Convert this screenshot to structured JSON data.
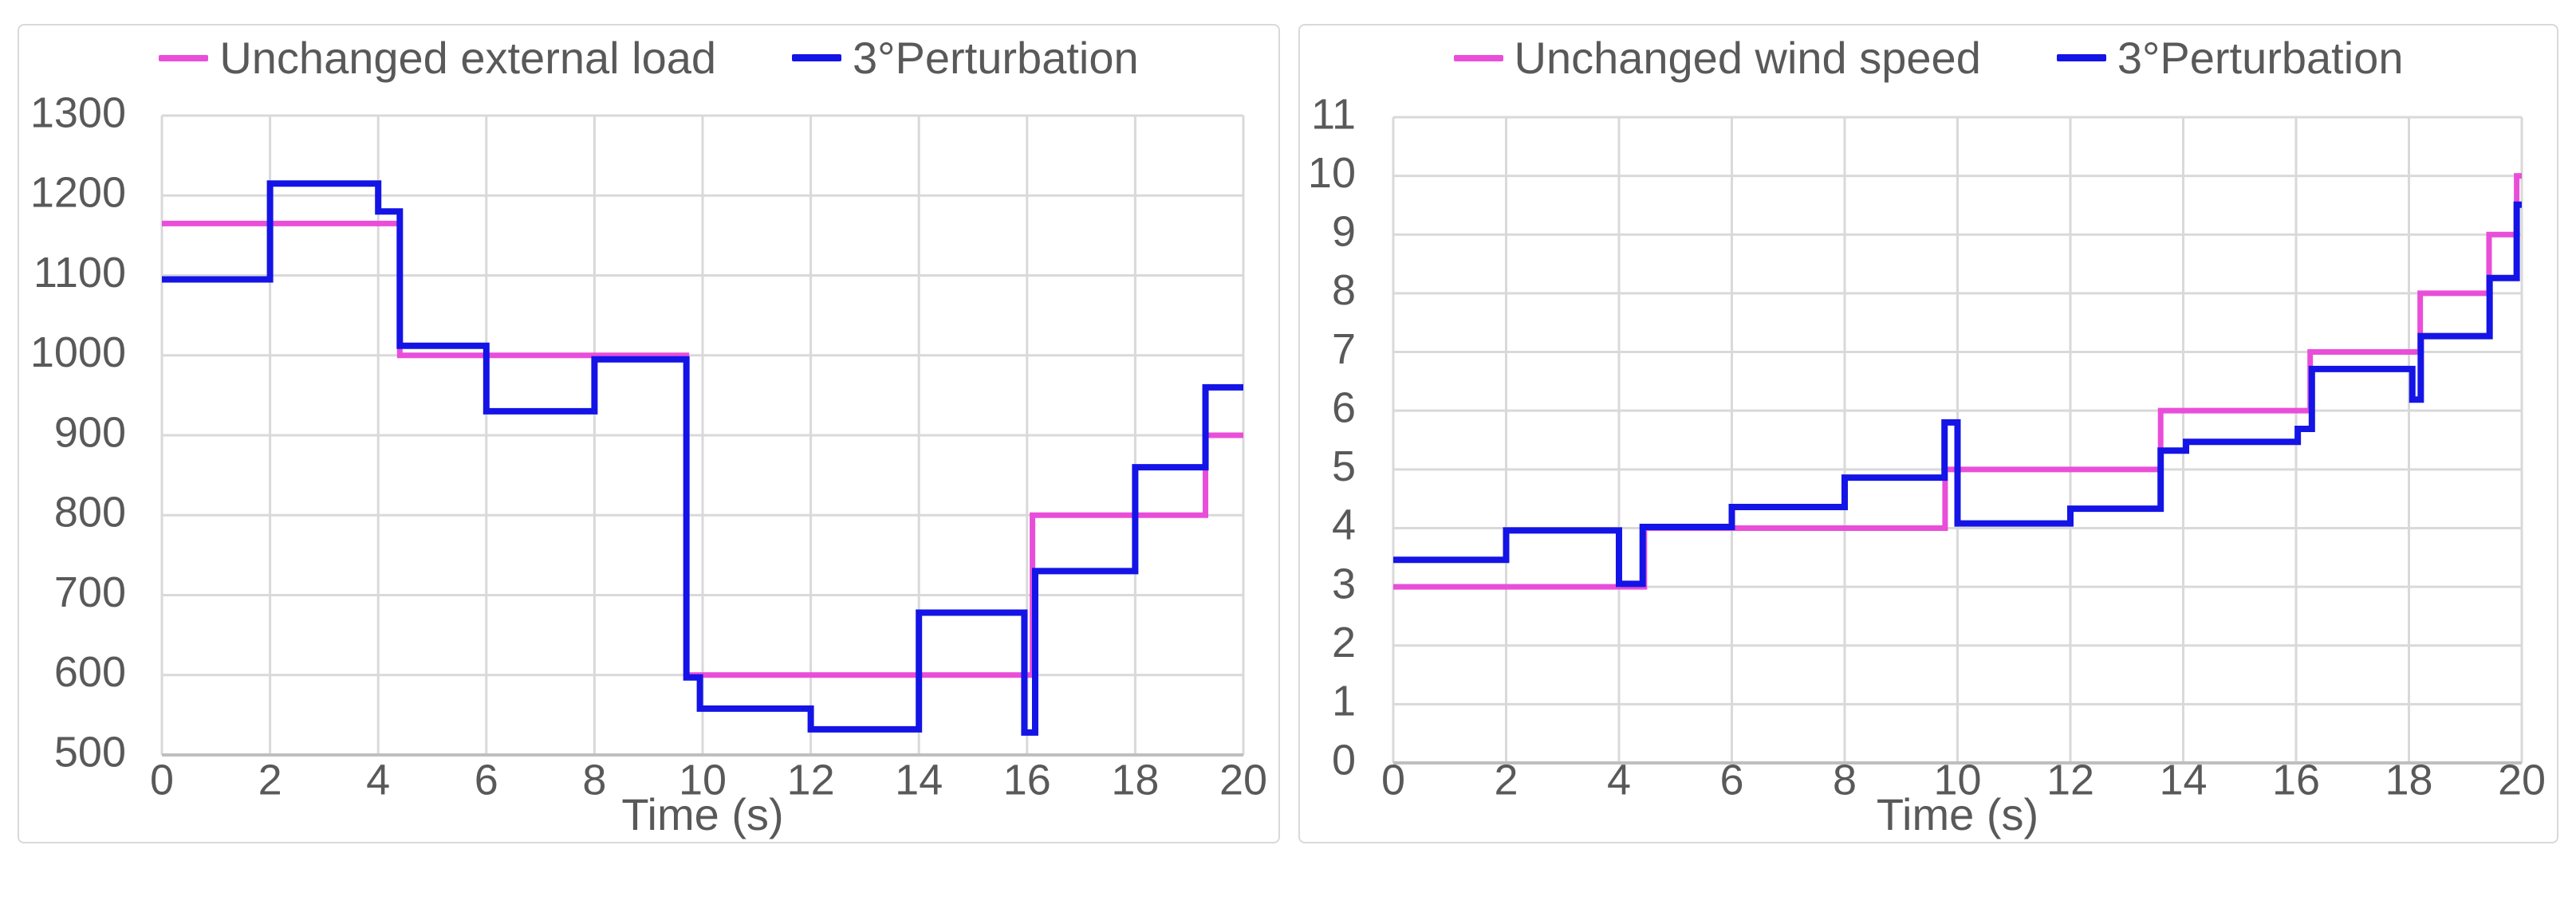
{
  "chart_data": [
    {
      "type": "line",
      "subtype": "step",
      "xlabel": "Time (s)",
      "ylabel": "",
      "xlim": [
        0,
        20
      ],
      "ylim": [
        500,
        1300
      ],
      "x_ticks": [
        0,
        2,
        4,
        6,
        8,
        10,
        12,
        14,
        16,
        18,
        20
      ],
      "y_ticks": [
        500,
        600,
        700,
        800,
        900,
        1000,
        1100,
        1200,
        1300
      ],
      "grid": true,
      "legend_position": "top",
      "series": [
        {
          "name": "Unchanged external load",
          "color": "#E94ED9",
          "steps_t": [
            0,
            4.4,
            9.7,
            16.1,
            19.3
          ],
          "steps_v": [
            1165,
            1000,
            600,
            800,
            900
          ],
          "t_end": 20
        },
        {
          "name": "3°Perturbation",
          "color": "#1414E6",
          "steps_t": [
            0,
            2,
            4,
            4.4,
            6,
            8,
            9.7,
            9.95,
            12,
            14,
            15.95,
            16.15,
            18,
            19.3
          ],
          "steps_v": [
            1095,
            1215,
            1180,
            1012,
            930,
            995,
            597,
            558,
            532,
            678,
            528,
            730,
            860,
            960
          ],
          "t_end": 20
        }
      ]
    },
    {
      "type": "line",
      "subtype": "step",
      "xlabel": "Time (s)",
      "ylabel": "",
      "xlim": [
        0,
        20
      ],
      "ylim": [
        0,
        11
      ],
      "x_ticks": [
        0,
        2,
        4,
        6,
        8,
        10,
        12,
        14,
        16,
        18,
        20
      ],
      "y_ticks": [
        0,
        1,
        2,
        3,
        4,
        5,
        6,
        7,
        8,
        9,
        10,
        11
      ],
      "grid": true,
      "legend_position": "top",
      "series": [
        {
          "name": "Unchanged wind speed",
          "color": "#E94ED9",
          "steps_t": [
            0,
            4.45,
            9.78,
            13.6,
            16.25,
            18.2,
            19.42,
            19.91
          ],
          "steps_v": [
            3,
            4,
            5,
            6,
            7,
            8,
            9,
            10
          ],
          "t_end": 20
        },
        {
          "name": "3°Perturbation",
          "color": "#1414E6",
          "steps_t": [
            0,
            2,
            4,
            4.42,
            6,
            8,
            9.77,
            10,
            12,
            13.6,
            14.05,
            16.03,
            16.28,
            18.06,
            18.21,
            19.43,
            19.91
          ],
          "steps_v": [
            3.46,
            3.96,
            3.05,
            4.02,
            4.36,
            4.86,
            5.8,
            4.08,
            4.33,
            5.32,
            5.47,
            5.69,
            6.71,
            6.19,
            7.27,
            8.26,
            9.51
          ],
          "t_end": 20
        }
      ]
    }
  ],
  "style": {
    "grid_color": "#D9D9D9",
    "axis_color": "#BFBFBF",
    "text_color": "#595959"
  }
}
